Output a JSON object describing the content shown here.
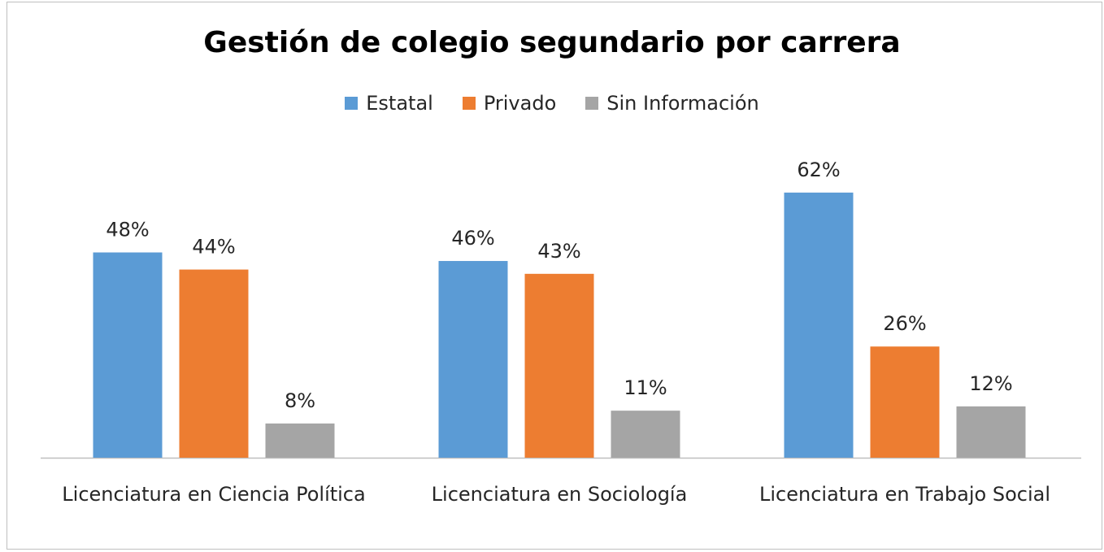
{
  "chart_data": {
    "type": "bar",
    "title": "Gestión de colegio segundario por carrera",
    "categories": [
      "Licenciatura en Ciencia Política",
      "Licenciatura en Sociología",
      "Licenciatura en Trabajo Social"
    ],
    "series": [
      {
        "name": "Estatal",
        "color": "#5b9bd5",
        "values": [
          48,
          46,
          62
        ],
        "value_labels": [
          "48%",
          "46%",
          "62%"
        ]
      },
      {
        "name": "Privado",
        "color": "#ed7d31",
        "values": [
          44,
          43,
          26
        ],
        "value_labels": [
          "44%",
          "43%",
          "26%"
        ]
      },
      {
        "name": "Sin Información",
        "color": "#a5a5a5",
        "values": [
          8,
          11,
          12
        ],
        "value_labels": [
          "8%",
          "11%",
          "12%"
        ]
      }
    ],
    "legend": "top"
  }
}
